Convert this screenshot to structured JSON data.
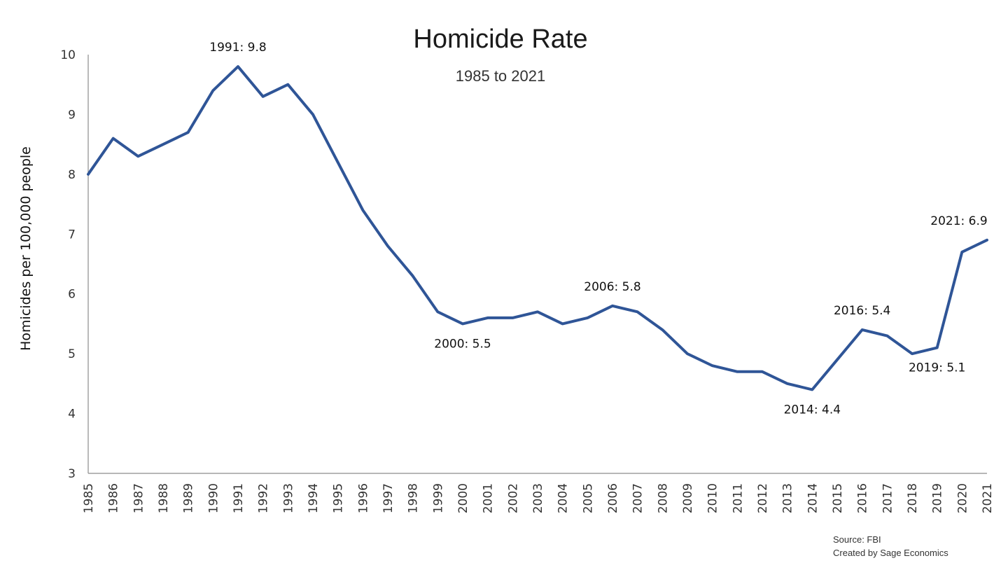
{
  "chart_data": {
    "type": "line",
    "title": "Homicide Rate",
    "subtitle": "1985 to 2021",
    "xlabel": "",
    "ylabel": "Homicides per 100,000 people",
    "ylim": [
      3,
      10
    ],
    "yticks": [
      "3",
      "4",
      "5",
      "6",
      "7",
      "8",
      "9",
      "10"
    ],
    "grid": false,
    "line_color": "#2f5597",
    "categories": [
      "1985",
      "1986",
      "1987",
      "1988",
      "1989",
      "1990",
      "1991",
      "1992",
      "1993",
      "1994",
      "1995",
      "1996",
      "1997",
      "1998",
      "1999",
      "2000",
      "2001",
      "2002",
      "2003",
      "2004",
      "2005",
      "2006",
      "2007",
      "2008",
      "2009",
      "2010",
      "2011",
      "2012",
      "2013",
      "2014",
      "2015",
      "2016",
      "2017",
      "2018",
      "2019",
      "2020",
      "2021"
    ],
    "series": [
      {
        "values": [
          8.0,
          8.6,
          8.3,
          8.5,
          8.7,
          9.4,
          9.8,
          9.3,
          9.5,
          9.0,
          8.2,
          7.4,
          6.8,
          6.3,
          5.7,
          5.5,
          5.6,
          5.6,
          5.7,
          5.5,
          5.6,
          5.8,
          5.7,
          5.4,
          5.0,
          4.8,
          4.7,
          4.7,
          4.5,
          4.4,
          4.9,
          5.4,
          5.3,
          5.0,
          5.1,
          6.7,
          6.9
        ]
      }
    ],
    "annotations": [
      {
        "text": "1991: 9.8",
        "x": "1991",
        "y": 9.8,
        "position": "above"
      },
      {
        "text": "2000: 5.5",
        "x": "2000",
        "y": 5.5,
        "position": "below"
      },
      {
        "text": "2006: 5.8",
        "x": "2006",
        "y": 5.8,
        "position": "above"
      },
      {
        "text": "2014: 4.4",
        "x": "2014",
        "y": 4.4,
        "position": "below"
      },
      {
        "text": "2016: 5.4",
        "x": "2016",
        "y": 5.4,
        "position": "above"
      },
      {
        "text": "2019: 5.1",
        "x": "2019",
        "y": 5.1,
        "position": "below"
      },
      {
        "text": "2021: 6.9",
        "x": "2021",
        "y": 6.9,
        "position": "above"
      }
    ]
  },
  "footer": {
    "source": "Source: FBI",
    "credit": "Created by Sage Economics"
  }
}
